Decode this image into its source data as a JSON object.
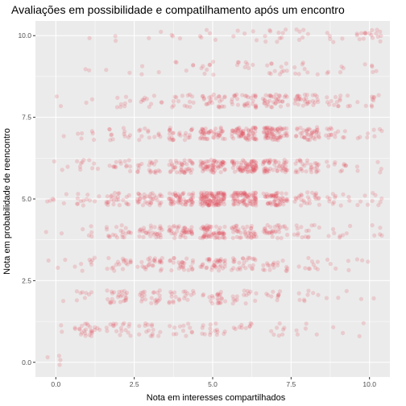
{
  "chart_data": {
    "type": "scatter",
    "title": "Avaliações em possibilidade e compatilhamento após um encontro",
    "xlabel": "Nota em interesses compartilhados",
    "ylabel": "Nota em probabilidade de reencontro",
    "xlim": [
      -0.65,
      10.65
    ],
    "ylim": [
      -0.45,
      10.45
    ],
    "x_ticks": [
      0,
      2.5,
      5,
      7.5,
      10
    ],
    "x_tick_labels": [
      "0.0",
      "2.5",
      "5.0",
      "7.5",
      "10.0"
    ],
    "y_ticks": [
      0,
      2.5,
      5,
      7.5,
      10
    ],
    "y_tick_labels": [
      "0.0",
      "2.5",
      "5.0",
      "7.5",
      "10.0"
    ],
    "grid": true,
    "jitter": 0.2,
    "point_alpha": 0.2,
    "point_color": "#e34a5a",
    "panel_background": "#ebebeb",
    "grid_color": "#ffffff",
    "series": [
      {
        "values_note": "",
        "counts_by_x": {
          "0": [
            4,
            2,
            1,
            3,
            2,
            6,
            3,
            1,
            2,
            0,
            0
          ],
          "1": [
            0,
            25,
            8,
            8,
            5,
            12,
            10,
            6,
            2,
            2,
            1
          ],
          "2": [
            0,
            18,
            25,
            18,
            20,
            25,
            14,
            12,
            8,
            2,
            2
          ],
          "3": [
            0,
            15,
            22,
            25,
            30,
            35,
            20,
            12,
            10,
            3,
            2
          ],
          "4": [
            0,
            12,
            20,
            25,
            40,
            55,
            40,
            25,
            15,
            5,
            3
          ],
          "5": [
            0,
            15,
            22,
            35,
            60,
            110,
            60,
            45,
            25,
            8,
            5
          ],
          "6": [
            0,
            10,
            15,
            25,
            40,
            80,
            70,
            60,
            30,
            8,
            5
          ],
          "7": [
            0,
            8,
            10,
            18,
            30,
            55,
            50,
            65,
            35,
            12,
            10
          ],
          "8": [
            0,
            5,
            8,
            10,
            15,
            25,
            30,
            40,
            30,
            8,
            6
          ],
          "9": [
            0,
            2,
            3,
            5,
            8,
            12,
            10,
            15,
            15,
            5,
            5
          ],
          "10": [
            0,
            2,
            2,
            3,
            5,
            10,
            5,
            8,
            10,
            5,
            18
          ]
        }
      }
    ]
  }
}
